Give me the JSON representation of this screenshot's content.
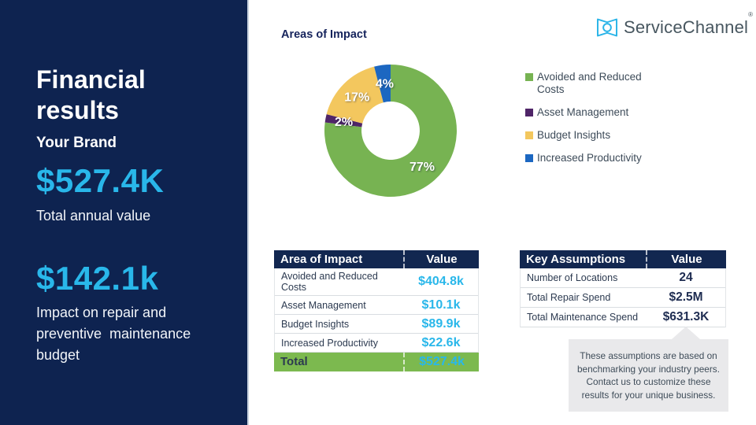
{
  "sidebar": {
    "title": "Financial results",
    "brand": "Your Brand",
    "total_value": "$527.4K",
    "total_caption": "Total annual value",
    "impact_value": "$142.1k",
    "impact_caption": "Impact on repair and preventive  maintenance budget"
  },
  "logo": {
    "text": "ServiceChannel",
    "registered": "®",
    "icon": "open-book-mark",
    "icon_color": "#29b4e8",
    "text_color": "#47565f"
  },
  "chart_data": {
    "type": "pie",
    "variant": "donut",
    "title": "Areas of Impact",
    "start_angle_deg": 0,
    "direction": "clockwise",
    "hole_ratio": 0.44,
    "legend_position": "right",
    "slices": [
      {
        "label": "Avoided and Reduced Costs",
        "percent": 77,
        "value_label": "77%",
        "color": "#77b352"
      },
      {
        "label": "Asset Management",
        "percent": 2,
        "value_label": "2%",
        "color": "#4f2568"
      },
      {
        "label": "Budget Insights",
        "percent": 17,
        "value_label": "17%",
        "color": "#f3c75e"
      },
      {
        "label": "Increased Productivity",
        "percent": 4,
        "value_label": "4%",
        "color": "#1c67c1"
      }
    ]
  },
  "impact_table": {
    "headers": [
      "Area of Impact",
      "Value"
    ],
    "rows": [
      {
        "label": "Avoided and Reduced Costs",
        "value": "$404.8k"
      },
      {
        "label": "Asset Management",
        "value": "$10.1k"
      },
      {
        "label": "Budget Insights",
        "value": "$89.9k"
      },
      {
        "label": "Increased Productivity",
        "value": "$22.6k"
      }
    ],
    "total": {
      "label": "Total",
      "value": "$527.4k"
    }
  },
  "assumptions_table": {
    "headers": [
      "Key Assumptions",
      "Value"
    ],
    "rows": [
      {
        "label": "Number of Locations",
        "value": "24"
      },
      {
        "label": "Total Repair Spend",
        "value": "$2.5M"
      },
      {
        "label": "Total Maintenance Spend",
        "value": "$631.3K"
      }
    ]
  },
  "note": {
    "text": "These assumptions are based on benchmarking your industry peers. Contact us to customize these results for your unique business."
  },
  "colors": {
    "navy": "#0e2350",
    "cyan_accent": "#29b7ea",
    "total_row_green": "#7cb94f",
    "note_bg": "#e9e9eb",
    "legend_text": "#3d4b59"
  }
}
